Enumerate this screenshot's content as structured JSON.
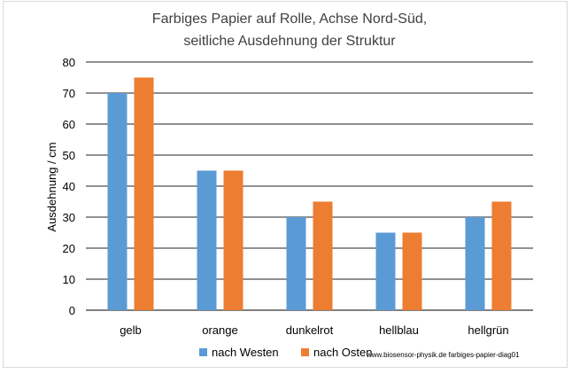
{
  "chart_data": {
    "type": "bar",
    "title_lines": [
      "Farbiges Papier auf Rolle, Achse Nord-Süd,",
      "seitliche Ausdehnung der Struktur"
    ],
    "ylabel": "Ausdehnung / cm",
    "xlabel": "",
    "categories": [
      "gelb",
      "orange",
      "dunkelrot",
      "hellblau",
      "hellgrün"
    ],
    "series": [
      {
        "name": "nach Westen",
        "color": "#5b9bd5",
        "values": [
          70,
          45,
          30,
          25,
          30
        ]
      },
      {
        "name": "nach Osten",
        "color": "#ed7d31",
        "values": [
          75,
          45,
          35,
          25,
          35
        ]
      }
    ],
    "ylim": [
      0,
      80
    ],
    "yticks": [
      0,
      10,
      20,
      30,
      40,
      50,
      60,
      70,
      80
    ],
    "grid": true,
    "legend_position": "bottom"
  },
  "credit": "www.biosensor-physik.de farbiges-papier-diag01"
}
